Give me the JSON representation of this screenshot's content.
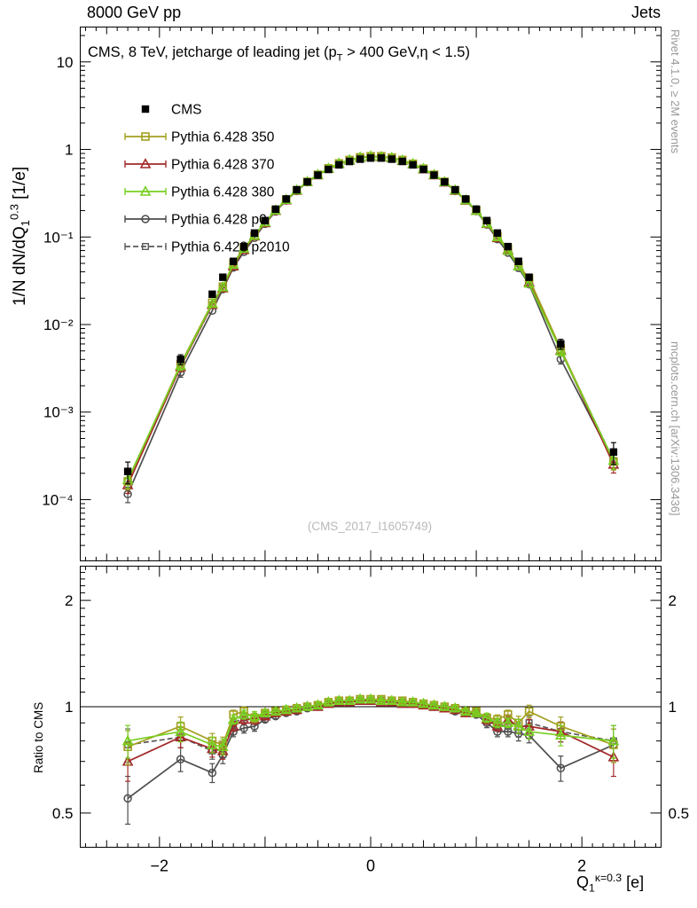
{
  "header": {
    "left": "8000 GeV pp",
    "right": "Jets"
  },
  "titles": {
    "main": {
      "pre": "CMS, 8 TeV, jetcharge of leading jet (p",
      "sub": "T",
      "post": " > 400 GeV,η < 1.5)"
    },
    "y_main": {
      "pre": "1/N dN/dQ",
      "sub": "1",
      "sup": "0.3",
      "post": " [1/e]"
    },
    "y_ratio": "Ratio to CMS",
    "x": {
      "pre": "Q",
      "sub": "1",
      "sup": "κ=0.3",
      "post": " [e]"
    },
    "watermark": "(CMS_2017_I1605749)"
  },
  "side_notes": {
    "top": "Rivet 4.1.0, ≥ 2M events",
    "bottom": "mcplots.cern.ch [arXiv:1306.3436]"
  },
  "chart_data": {
    "type": "line",
    "title": "CMS, 8 TeV, jetcharge of leading jet (pT > 400 GeV, eta < 1.5)",
    "xlabel": "Q1^(k=0.3) [e]",
    "ylabel_main": "1/N dN/dQ1^0.3 [1/e]",
    "ylabel_ratio": "Ratio to CMS",
    "ratio_reference": "CMS",
    "x": [
      -2.3,
      -1.8,
      -1.5,
      -1.4,
      -1.3,
      -1.2,
      -1.1,
      -1.0,
      -0.9,
      -0.8,
      -0.7,
      -0.6,
      -0.5,
      -0.4,
      -0.3,
      -0.2,
      -0.1,
      0,
      0.1,
      0.2,
      0.3,
      0.4,
      0.5,
      0.6,
      0.7,
      0.8,
      0.9,
      1.0,
      1.1,
      1.2,
      1.3,
      1.4,
      1.5,
      1.8,
      2.3
    ],
    "series": [
      {
        "name": "CMS",
        "marker": "square-filled",
        "color": "#000000",
        "line": "none",
        "values": [
          0.00021,
          0.004,
          0.0222,
          0.0347,
          0.0527,
          0.0777,
          0.111,
          0.154,
          0.208,
          0.272,
          0.346,
          0.426,
          0.509,
          0.591,
          0.666,
          0.729,
          0.774,
          0.797,
          0.797,
          0.774,
          0.729,
          0.666,
          0.591,
          0.509,
          0.426,
          0.346,
          0.272,
          0.208,
          0.154,
          0.111,
          0.0777,
          0.0527,
          0.0347,
          0.006,
          0.00035
        ]
      },
      {
        "name": "Pythia 6.428 350",
        "marker": "square-open",
        "color": "#a3a020",
        "line": "solid",
        "ratio": [
          0.77,
          0.88,
          0.8,
          0.78,
          0.95,
          0.97,
          0.93,
          0.96,
          0.97,
          0.98,
          0.99,
          1.0,
          1.01,
          1.03,
          1.04,
          1.04,
          1.05,
          1.05,
          1.05,
          1.04,
          1.04,
          1.03,
          1.02,
          1.01,
          1.0,
          0.99,
          0.97,
          0.97,
          0.93,
          0.92,
          0.95,
          0.9,
          0.97,
          0.88,
          0.78
        ]
      },
      {
        "name": "Pythia 6.428 370",
        "marker": "triangle-open",
        "color": "#a32a2a",
        "line": "solid",
        "ratio": [
          0.7,
          0.82,
          0.76,
          0.75,
          0.88,
          0.92,
          0.92,
          0.94,
          0.96,
          0.97,
          0.98,
          1.0,
          1.0,
          1.02,
          1.03,
          1.03,
          1.04,
          1.04,
          1.03,
          1.03,
          1.02,
          1.02,
          1.01,
          1.0,
          0.99,
          0.98,
          0.96,
          0.96,
          0.92,
          0.88,
          0.92,
          0.88,
          0.88,
          0.85,
          0.72
        ]
      },
      {
        "name": "Pythia 6.428 380",
        "marker": "triangle-open",
        "color": "#77cf21",
        "line": "solid",
        "ratio": [
          0.8,
          0.85,
          0.78,
          0.77,
          0.92,
          0.95,
          0.94,
          0.96,
          0.97,
          0.98,
          0.99,
          1.0,
          1.01,
          1.03,
          1.04,
          1.04,
          1.05,
          1.05,
          1.04,
          1.04,
          1.03,
          1.03,
          1.02,
          1.01,
          1.0,
          0.99,
          0.97,
          0.96,
          0.93,
          0.9,
          0.9,
          0.88,
          0.85,
          0.83,
          0.8
        ]
      },
      {
        "name": "Pythia 6.428 p0",
        "marker": "circle-open",
        "color": "#4d4d4d",
        "line": "solid",
        "ratio": [
          0.55,
          0.71,
          0.65,
          0.73,
          0.85,
          0.87,
          0.88,
          0.92,
          0.94,
          0.96,
          0.97,
          0.99,
          1.0,
          1.02,
          1.03,
          1.03,
          1.04,
          1.04,
          1.04,
          1.03,
          1.03,
          1.02,
          1.01,
          1.0,
          0.99,
          0.97,
          0.96,
          0.95,
          0.9,
          0.85,
          0.85,
          0.84,
          0.83,
          0.67,
          0.78
        ]
      },
      {
        "name": "Pythia 6.428 p2010",
        "marker": "square-open-small",
        "color": "#5a5a5a",
        "line": "dashed",
        "ratio": [
          0.78,
          0.82,
          0.75,
          0.76,
          0.9,
          0.93,
          0.92,
          0.95,
          0.96,
          0.97,
          0.98,
          1.0,
          1.01,
          1.02,
          1.03,
          1.03,
          1.04,
          1.04,
          1.04,
          1.03,
          1.03,
          1.02,
          1.01,
          1.0,
          0.99,
          0.98,
          0.97,
          0.96,
          0.92,
          0.89,
          0.88,
          0.86,
          0.9,
          0.85,
          0.8
        ]
      }
    ],
    "axes": {
      "x": {
        "min": -2.75,
        "max": 2.75,
        "ticks": [
          {
            "v": -2,
            "label": "−2"
          },
          {
            "v": 0,
            "label": "0"
          },
          {
            "v": 2,
            "label": "2"
          }
        ]
      },
      "y_main": {
        "scale": "log",
        "min": 2e-05,
        "max": 25,
        "ticks": [
          {
            "v": 10,
            "label": "10"
          },
          {
            "v": 1,
            "label": "1"
          },
          {
            "v": 0.1,
            "label": "10⁻¹"
          },
          {
            "v": 0.01,
            "label": "10⁻²"
          },
          {
            "v": 0.001,
            "label": "10⁻³"
          },
          {
            "v": 0.0001,
            "label": "10⁻⁴"
          }
        ]
      },
      "y_ratio": {
        "scale": "log",
        "min": 0.4,
        "max": 2.5,
        "ticks": [
          {
            "v": 2,
            "label": "2"
          },
          {
            "v": 1,
            "label": "1"
          },
          {
            "v": 0.5,
            "label": "0.5"
          }
        ]
      },
      "grid": false,
      "legend_position": "top-left"
    }
  }
}
